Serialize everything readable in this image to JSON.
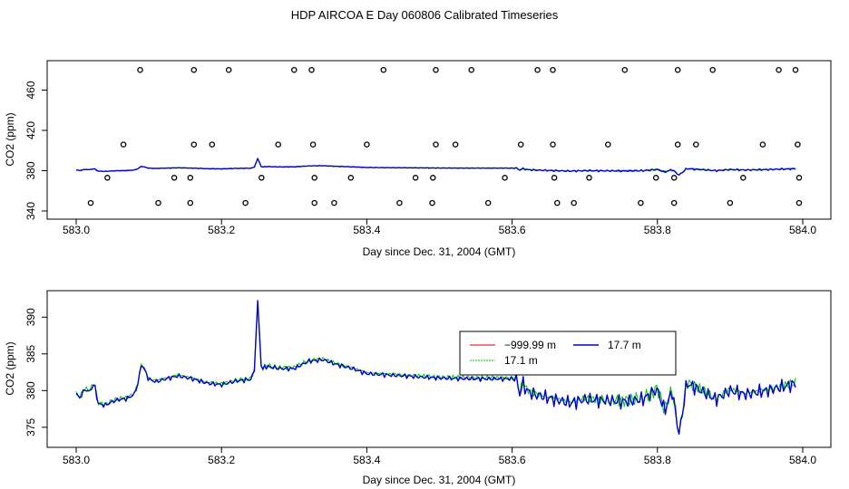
{
  "title": "HDP AIRCOA E  Day 060806  Calibrated Timeseries",
  "chart_data": [
    {
      "type": "line+scatter",
      "xlabel": "Day since Dec. 31, 2004 (GMT)",
      "ylabel": "CO2 (ppm)",
      "xlim": [
        583.0,
        584.0
      ],
      "ylim": [
        340,
        482
      ],
      "xticks": [
        "583.0",
        "583.2",
        "583.4",
        "583.6",
        "583.8",
        "584.0"
      ],
      "xtick_values": [
        583.0,
        583.2,
        583.4,
        583.6,
        583.8,
        584.0
      ],
      "yticks": [
        "340",
        "380",
        "420",
        "460"
      ],
      "ytick_values": [
        340,
        380,
        420,
        460
      ],
      "calibration_points": {
        "levels": [
          480,
          406,
          373,
          348
        ],
        "x_level_480": [
          583.088,
          583.162,
          583.21,
          583.3,
          583.324,
          583.423,
          583.495,
          583.544,
          583.635,
          583.656,
          583.755,
          583.828,
          583.876,
          583.967,
          583.99
        ],
        "x_level_406": [
          583.065,
          583.162,
          583.187,
          583.278,
          583.326,
          583.4,
          583.495,
          583.522,
          583.612,
          583.656,
          583.732,
          583.828,
          583.853,
          583.945,
          583.993
        ],
        "x_level_373": [
          583.043,
          583.135,
          583.157,
          583.255,
          583.328,
          583.378,
          583.467,
          583.491,
          583.59,
          583.658,
          583.706,
          583.798,
          583.823,
          583.918,
          583.995
        ],
        "x_level_348": [
          583.02,
          583.113,
          583.157,
          583.233,
          583.328,
          583.355,
          583.445,
          583.49,
          583.567,
          583.662,
          583.685,
          583.777,
          583.823,
          583.9,
          583.995
        ]
      },
      "series": [
        {
          "name": "17.1 m",
          "color": "#00cc00"
        },
        {
          "name": "17.7 m",
          "color": "#0000cc"
        }
      ]
    },
    {
      "type": "line",
      "xlabel": "Day since Dec. 31, 2004 (GMT)",
      "ylabel": "CO2 (ppm)",
      "xlim": [
        583.0,
        584.0
      ],
      "ylim": [
        373.5,
        392.5
      ],
      "xticks": [
        "583.0",
        "583.2",
        "583.4",
        "583.6",
        "583.8",
        "584.0"
      ],
      "xtick_values": [
        583.0,
        583.2,
        583.4,
        583.6,
        583.8,
        584.0
      ],
      "yticks": [
        "375",
        "380",
        "385",
        "390"
      ],
      "ytick_values": [
        375,
        380,
        385,
        390
      ],
      "series": [
        {
          "name": "−999.99 m",
          "color": "#cc0000"
        },
        {
          "name": "17.7 m",
          "color": "#0000cc"
        },
        {
          "name": "17.1 m",
          "color": "#00cc00"
        }
      ],
      "co2_anchor_days": [
        583.0,
        583.005,
        583.012,
        583.018,
        583.025,
        583.03,
        583.04,
        583.05,
        583.06,
        583.07,
        583.08,
        583.085,
        583.09,
        583.1,
        583.11,
        583.12,
        583.14,
        583.16,
        583.18,
        583.2,
        583.22,
        583.24,
        583.245,
        583.25,
        583.255,
        583.26,
        583.28,
        583.3,
        583.32,
        583.34,
        583.36,
        583.38,
        583.4,
        583.45,
        583.5,
        583.55,
        583.6,
        583.605,
        583.61,
        583.615,
        583.62,
        583.63,
        583.65,
        583.68,
        583.7,
        583.75,
        583.78,
        583.8,
        583.81,
        583.82,
        583.83,
        583.84,
        583.86,
        583.88,
        583.9,
        583.92,
        583.95,
        583.99
      ],
      "co2_anchor_ppm": [
        379.5,
        379.0,
        380.2,
        379.8,
        381.0,
        378.2,
        378.0,
        378.5,
        378.8,
        378.9,
        379.5,
        381.0,
        383.7,
        381.5,
        381.2,
        381.5,
        382.0,
        381.6,
        381.0,
        380.8,
        381.3,
        381.5,
        382.5,
        392.3,
        382.6,
        383.3,
        383.0,
        383.0,
        384.0,
        384.2,
        383.5,
        383.0,
        382.3,
        382.0,
        381.7,
        381.6,
        381.6,
        382.0,
        379.5,
        381.0,
        380.0,
        379.5,
        379.0,
        378.3,
        378.8,
        378.5,
        378.8,
        380.2,
        377.2,
        380.0,
        373.9,
        381.0,
        380.0,
        378.8,
        380.0,
        379.5,
        380.0,
        380.9
      ]
    }
  ]
}
